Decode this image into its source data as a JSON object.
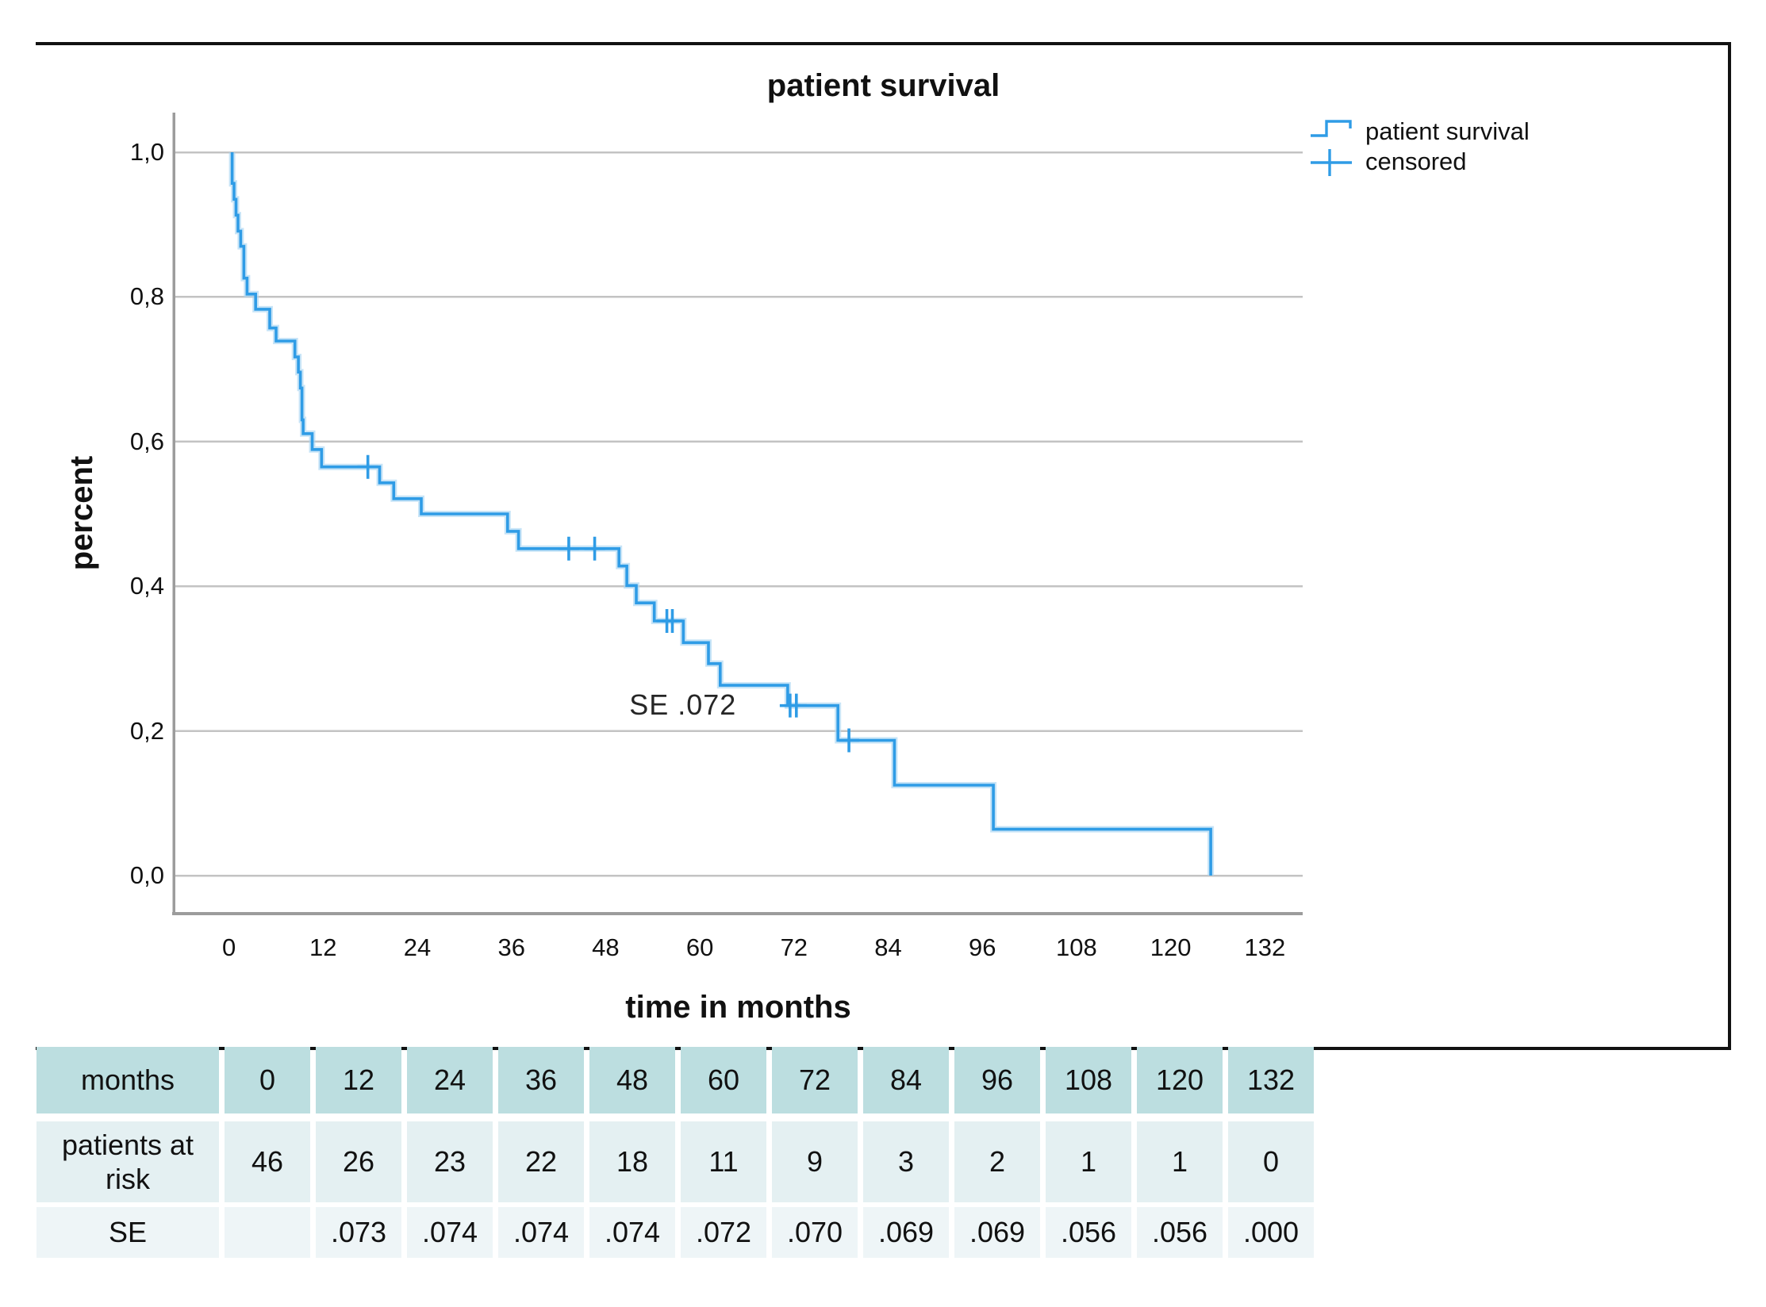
{
  "figure": {
    "background": "#FFFFFF",
    "border_color": "#121212"
  },
  "chart_data": {
    "type": "line",
    "subtype": "kaplan_meier_step",
    "title": "patient survival",
    "xlabel": "time in months",
    "ylabel": "percent",
    "xlim": [
      0,
      132
    ],
    "ylim": [
      0.0,
      1.0
    ],
    "grid": "horizontal",
    "legend_position": "top-right-outside",
    "x_ticks": [
      0,
      12,
      24,
      36,
      48,
      60,
      72,
      84,
      96,
      108,
      120,
      132
    ],
    "y_ticks": [
      {
        "value": 0.0,
        "label": "0,0"
      },
      {
        "value": 0.2,
        "label": "0,2"
      },
      {
        "value": 0.4,
        "label": "0,4"
      },
      {
        "value": 0.6,
        "label": "0,6"
      },
      {
        "value": 0.8,
        "label": "0,8"
      },
      {
        "value": 1.0,
        "label": "1,0"
      }
    ],
    "series": [
      {
        "name": "patient survival",
        "color": "#2F9CE6",
        "start": [
          0.4,
          1.0
        ],
        "steps": [
          [
            0.4,
            0.957
          ],
          [
            0.65,
            0.935
          ],
          [
            0.9,
            0.913
          ],
          [
            1.15,
            0.891
          ],
          [
            1.5,
            0.87
          ],
          [
            1.9,
            0.826
          ],
          [
            2.3,
            0.804
          ],
          [
            3.4,
            0.783
          ],
          [
            5.2,
            0.757
          ],
          [
            6.0,
            0.739
          ],
          [
            8.4,
            0.717
          ],
          [
            8.85,
            0.696
          ],
          [
            9.1,
            0.674
          ],
          [
            9.3,
            0.63
          ],
          [
            9.45,
            0.611
          ],
          [
            10.6,
            0.589
          ],
          [
            11.8,
            0.565
          ],
          [
            19.2,
            0.543
          ],
          [
            21.0,
            0.521
          ],
          [
            24.5,
            0.5
          ],
          [
            35.5,
            0.476
          ],
          [
            36.9,
            0.452
          ],
          [
            49.7,
            0.428
          ],
          [
            50.7,
            0.401
          ],
          [
            51.9,
            0.377
          ],
          [
            54.2,
            0.352
          ],
          [
            57.9,
            0.322
          ],
          [
            61.1,
            0.293
          ],
          [
            62.6,
            0.263
          ],
          [
            71.2,
            0.235
          ],
          [
            77.6,
            0.187
          ],
          [
            84.8,
            0.125
          ],
          [
            97.4,
            0.064
          ],
          [
            125.1,
            0.0
          ]
        ]
      }
    ],
    "censored_points": [
      [
        17.7,
        0.565
      ],
      [
        43.3,
        0.452
      ],
      [
        46.6,
        0.452
      ],
      [
        55.8,
        0.352
      ],
      [
        56.5,
        0.352
      ],
      [
        71.5,
        0.235
      ],
      [
        72.3,
        0.235
      ],
      [
        79.0,
        0.187
      ]
    ],
    "annotation": {
      "text": "SE .072",
      "x": 58.8,
      "y": 0.233
    },
    "legend": [
      {
        "label": "patient survival",
        "marker": "step-line"
      },
      {
        "label": "censored",
        "marker": "plus"
      }
    ]
  },
  "risk_table": {
    "rows": [
      {
        "label": "months",
        "style": "header",
        "values": [
          "0",
          "12",
          "24",
          "36",
          "48",
          "60",
          "72",
          "84",
          "96",
          "108",
          "120",
          "132"
        ]
      },
      {
        "label": "patients at risk",
        "style": "body",
        "values": [
          "46",
          "26",
          "23",
          "22",
          "18",
          "11",
          "9",
          "3",
          "2",
          "1",
          "1",
          "0"
        ]
      },
      {
        "label": "SE",
        "style": "body2",
        "values": [
          "",
          ".073",
          ".074",
          ".074",
          ".074",
          ".072",
          ".070",
          ".069",
          ".069",
          ".056",
          ".056",
          ".000"
        ]
      }
    ],
    "colors": {
      "header_bg": "#BCDEE0",
      "body_bg": "#E4F0F2",
      "body2_bg": "#EEF5F7",
      "text": "#111111"
    }
  },
  "theme": {
    "line_color": "#2F9CE6",
    "line_halo": "#A9D6F2",
    "grid_color": "#C3C3C3",
    "axis_color": "#9C9C9C",
    "text_color": "#111111"
  }
}
